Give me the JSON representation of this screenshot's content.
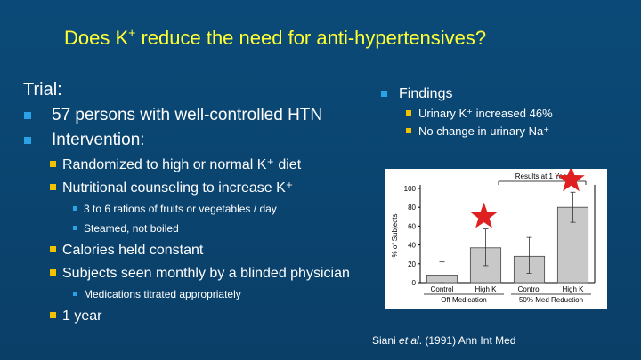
{
  "title": {
    "pre": "Does K",
    "sup": "+",
    "post": " reduce the need for anti-hypertensives?"
  },
  "left": {
    "trial_label": "Trial:",
    "items": [
      {
        "level": 1,
        "text": "57 persons with well-controlled HTN"
      },
      {
        "level": 1,
        "text": "Intervention:"
      },
      {
        "level": 2,
        "text": "Randomized to high or normal K⁺ diet"
      },
      {
        "level": 2,
        "text": "Nutritional counseling to increase K⁺"
      },
      {
        "level": 3,
        "text": "3 to 6 rations of fruits or vegetables / day"
      },
      {
        "level": 3,
        "text": "Steamed, not boiled"
      },
      {
        "level": 2,
        "text": "Calories held constant"
      },
      {
        "level": 2,
        "text": "Subjects seen monthly by a blinded physician"
      },
      {
        "level": 3,
        "text": "Medications titrated appropriately"
      },
      {
        "level": 2,
        "text": "1 year"
      }
    ]
  },
  "findings": {
    "heading": "Findings",
    "items": [
      "Urinary K⁺ increased 46%",
      "No change in urinary Na⁺"
    ]
  },
  "citation": {
    "author": "Siani ",
    "etal": "et al",
    "rest": ". (1991) Ann Int Med"
  },
  "chart_data": {
    "type": "bar",
    "title": "Results at 1 Year",
    "ylabel": "% of Subjects",
    "ylim": [
      0,
      100
    ],
    "yticks": [
      0,
      20,
      40,
      60,
      80,
      100
    ],
    "categories": [
      "Control",
      "High K",
      "Control",
      "High K"
    ],
    "values": [
      8,
      37,
      28,
      80
    ],
    "error_high": [
      22,
      57,
      48,
      96
    ],
    "error_low": [
      0,
      18,
      10,
      64
    ],
    "groups": [
      {
        "label": "Off Medication",
        "indices": [
          0,
          1
        ]
      },
      {
        "label": "50% Med Reduction",
        "indices": [
          2,
          3
        ]
      }
    ],
    "starred": [
      1,
      3
    ],
    "colors": {
      "bar": "#c8c8c8",
      "star": "#e02020"
    }
  }
}
